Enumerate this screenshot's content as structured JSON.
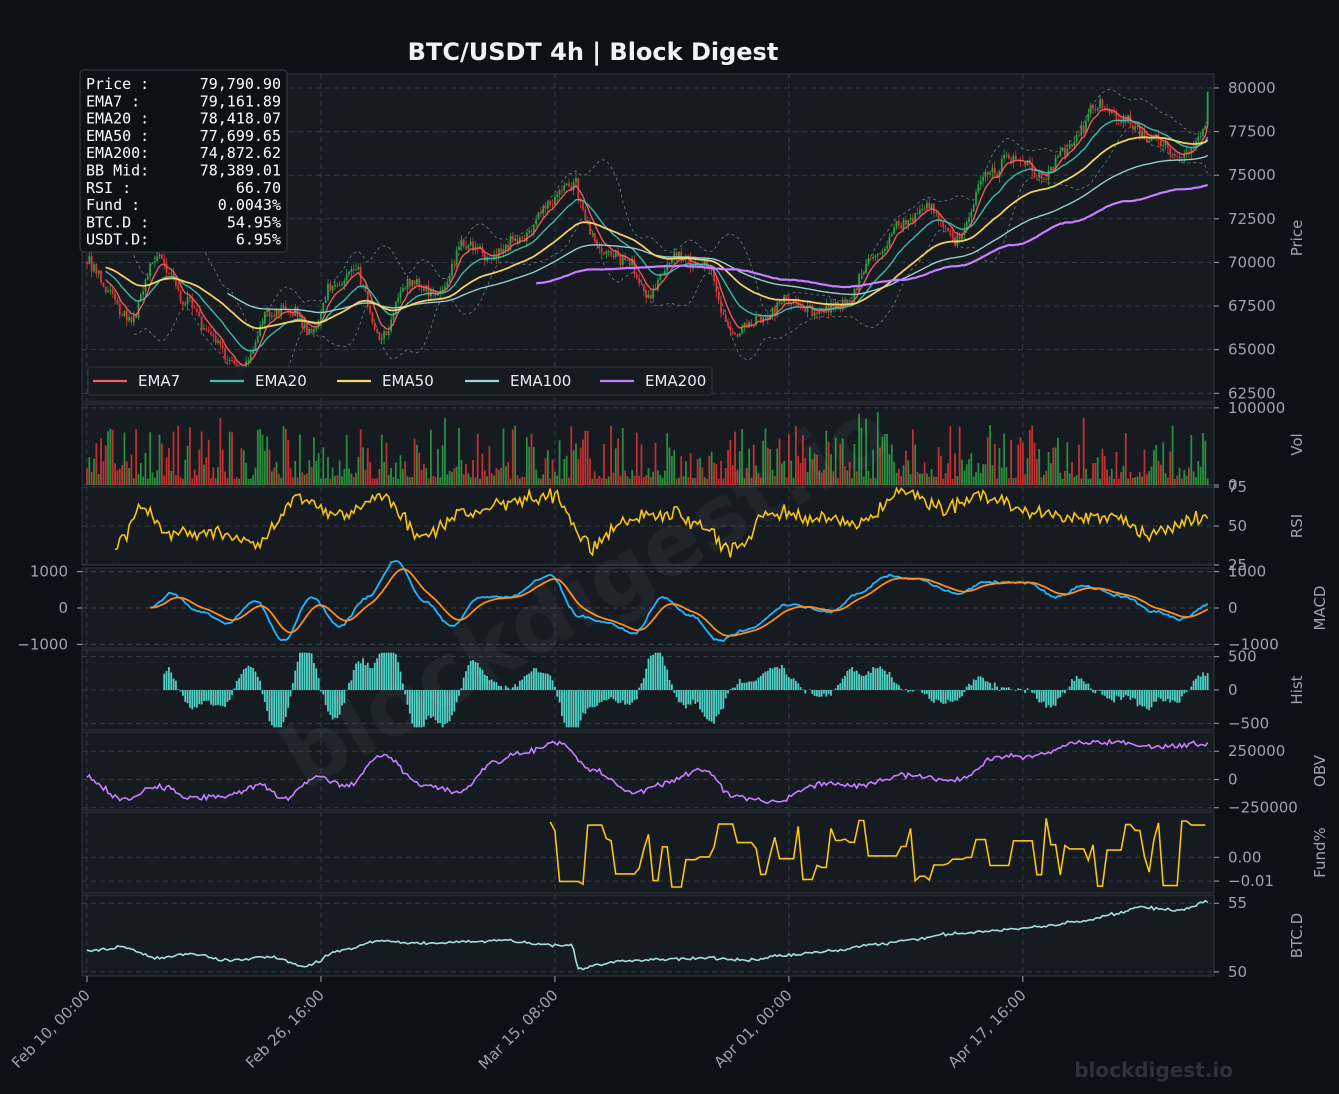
{
  "title": "BTC/USDT  4h  |  Block Digest",
  "watermark": "blockdigest.io",
  "info_box": [
    {
      "label": "Price :",
      "value": "79,790.90"
    },
    {
      "label": "EMA7  :",
      "value": "79,161.89"
    },
    {
      "label": "EMA20 :",
      "value": "78,418.07"
    },
    {
      "label": "EMA50 :",
      "value": "77,699.65"
    },
    {
      "label": "EMA200:",
      "value": "74,872.62"
    },
    {
      "label": "BB Mid:",
      "value": "78,389.01"
    },
    {
      "label": "RSI   :",
      "value": "66.70"
    },
    {
      "label": "Fund  :",
      "value": "0.0043%"
    },
    {
      "label": "BTC.D :",
      "value": "54.95%"
    },
    {
      "label": "USDT.D:",
      "value": "6.95%"
    }
  ],
  "colors": {
    "background": "#0d1117",
    "panel": "#161b22",
    "grid": "#3a424c",
    "up": "#2ea043",
    "down": "#da3633",
    "ema7": "#f85c5c",
    "ema20": "#3fc1b0",
    "ema50": "#ffd866",
    "ema100": "#9bd6d6",
    "ema200": "#c77dff",
    "rsi": "#f9c513",
    "macd": "#1fb6ff",
    "signal": "#ff8c1a",
    "hist": "#4fd1c5",
    "obv": "#c77dff",
    "funding": "#f9c513",
    "btcd": "#a6dce0"
  },
  "chart_data": {
    "type": "line",
    "x_ticks": [
      "Feb 10, 00:00",
      "Feb 26, 16:00",
      "Mar 15, 08:00",
      "Apr 01, 00:00",
      "Apr 17, 16:00"
    ],
    "x_range": [
      "2025-02-10 00:00",
      "2025-05-01 00:00"
    ],
    "panels": [
      {
        "name": "price",
        "type": "candlestick",
        "ylabel": "Price",
        "ylim": [
          62000,
          80800
        ],
        "yticks": [
          "62500",
          "65000",
          "67500",
          "70000",
          "72500",
          "75000",
          "77500",
          "80000"
        ],
        "legend": [
          "EMA7",
          "EMA20",
          "EMA50",
          "EMA100",
          "EMA200"
        ],
        "legend_position": "lower-left",
        "close_anchors": [
          [
            0,
            70000
          ],
          [
            3,
            68500
          ],
          [
            6,
            66500
          ],
          [
            10,
            70300
          ],
          [
            14,
            68000
          ],
          [
            18,
            65500
          ],
          [
            22,
            63800
          ],
          [
            26,
            67000
          ],
          [
            29,
            67500
          ],
          [
            32,
            66000
          ],
          [
            35,
            68700
          ],
          [
            38,
            69500
          ],
          [
            42,
            65700
          ],
          [
            46,
            69000
          ],
          [
            50,
            68200
          ],
          [
            54,
            71000
          ],
          [
            58,
            70200
          ],
          [
            62,
            71500
          ],
          [
            66,
            73500
          ],
          [
            69,
            74500
          ],
          [
            73,
            71000
          ],
          [
            77,
            70000
          ],
          [
            80,
            68200
          ],
          [
            84,
            70500
          ],
          [
            88,
            69800
          ],
          [
            92,
            66000
          ],
          [
            96,
            66700
          ],
          [
            100,
            67800
          ],
          [
            104,
            67100
          ],
          [
            108,
            67500
          ],
          [
            112,
            70300
          ],
          [
            116,
            72300
          ],
          [
            120,
            73200
          ],
          [
            124,
            71200
          ],
          [
            128,
            75000
          ],
          [
            132,
            76000
          ],
          [
            136,
            74800
          ],
          [
            140,
            76800
          ],
          [
            144,
            79000
          ],
          [
            148,
            78000
          ],
          [
            152,
            77000
          ],
          [
            156,
            76000
          ],
          [
            160,
            78000
          ],
          [
            164,
            79000
          ],
          [
            165,
            79790
          ]
        ],
        "ema200_anchors": [
          [
            64,
            68800
          ],
          [
            72,
            69600
          ],
          [
            85,
            69800
          ],
          [
            92,
            69600
          ],
          [
            100,
            69000
          ],
          [
            108,
            68600
          ],
          [
            116,
            69000
          ],
          [
            124,
            69800
          ],
          [
            132,
            71000
          ],
          [
            140,
            72300
          ],
          [
            148,
            73500
          ],
          [
            156,
            74200
          ],
          [
            165,
            74870
          ]
        ],
        "series": [
          "EMA7",
          "EMA20",
          "EMA50",
          "EMA100",
          "EMA200",
          "BB Upper",
          "BB Lower"
        ]
      },
      {
        "name": "volume",
        "type": "bar",
        "ylabel": "Vol",
        "ylim": [
          0,
          105000
        ],
        "yticks": [
          "0",
          "100000"
        ]
      },
      {
        "name": "rsi",
        "type": "line",
        "ylabel": "RSI",
        "ylim": [
          25,
          75
        ],
        "yticks": [
          "25",
          "50",
          "75"
        ],
        "anchors": [
          [
            4,
            35
          ],
          [
            8,
            62
          ],
          [
            12,
            45
          ],
          [
            18,
            45
          ],
          [
            24,
            38
          ],
          [
            30,
            68
          ],
          [
            36,
            55
          ],
          [
            42,
            70
          ],
          [
            48,
            43
          ],
          [
            54,
            58
          ],
          [
            60,
            65
          ],
          [
            66,
            70
          ],
          [
            72,
            37
          ],
          [
            78,
            55
          ],
          [
            84,
            58
          ],
          [
            88,
            48
          ],
          [
            92,
            35
          ],
          [
            98,
            60
          ],
          [
            104,
            55
          ],
          [
            110,
            52
          ],
          [
            116,
            72
          ],
          [
            122,
            62
          ],
          [
            128,
            70
          ],
          [
            134,
            60
          ],
          [
            140,
            55
          ],
          [
            146,
            55
          ],
          [
            152,
            45
          ],
          [
            158,
            55
          ],
          [
            165,
            67
          ]
        ]
      },
      {
        "name": "macd",
        "type": "line",
        "ylabel": "MACD",
        "ylim": [
          -1100,
          1100
        ],
        "yticks": [
          "-1000",
          "0",
          "1000"
        ],
        "macd_anchors": [
          [
            9,
            0
          ],
          [
            12,
            400
          ],
          [
            16,
            -100
          ],
          [
            20,
            -400
          ],
          [
            24,
            200
          ],
          [
            28,
            -900
          ],
          [
            32,
            300
          ],
          [
            36,
            -500
          ],
          [
            40,
            300
          ],
          [
            44,
            1300
          ],
          [
            48,
            200
          ],
          [
            52,
            -500
          ],
          [
            56,
            300
          ],
          [
            60,
            300
          ],
          [
            66,
            900
          ],
          [
            70,
            -200
          ],
          [
            74,
            -400
          ],
          [
            78,
            -700
          ],
          [
            82,
            300
          ],
          [
            86,
            -200
          ],
          [
            90,
            -900
          ],
          [
            94,
            -600
          ],
          [
            100,
            100
          ],
          [
            106,
            -100
          ],
          [
            110,
            400
          ],
          [
            114,
            900
          ],
          [
            118,
            800
          ],
          [
            124,
            400
          ],
          [
            128,
            700
          ],
          [
            134,
            700
          ],
          [
            138,
            300
          ],
          [
            142,
            600
          ],
          [
            148,
            300
          ],
          [
            152,
            -100
          ],
          [
            156,
            -300
          ],
          [
            160,
            100
          ],
          [
            165,
            500
          ]
        ]
      },
      {
        "name": "hist",
        "type": "bar",
        "ylabel": "Hist",
        "ylim": [
          -600,
          600
        ],
        "yticks": [
          "-500",
          "0",
          "500"
        ]
      },
      {
        "name": "obv",
        "type": "line",
        "ylabel": "OBV",
        "ylim": [
          -270000,
          420000
        ],
        "yticks": [
          "-250000",
          "0",
          "250000"
        ],
        "anchors": [
          [
            0,
            20000
          ],
          [
            5,
            -180000
          ],
          [
            10,
            -60000
          ],
          [
            15,
            -160000
          ],
          [
            20,
            -140000
          ],
          [
            25,
            -50000
          ],
          [
            28,
            -170000
          ],
          [
            33,
            30000
          ],
          [
            37,
            -60000
          ],
          [
            42,
            220000
          ],
          [
            48,
            -50000
          ],
          [
            53,
            -120000
          ],
          [
            58,
            150000
          ],
          [
            62,
            240000
          ],
          [
            67,
            330000
          ],
          [
            72,
            80000
          ],
          [
            78,
            -120000
          ],
          [
            82,
            -30000
          ],
          [
            88,
            80000
          ],
          [
            92,
            -150000
          ],
          [
            98,
            -200000
          ],
          [
            104,
            -50000
          ],
          [
            110,
            -50000
          ],
          [
            116,
            40000
          ],
          [
            124,
            0
          ],
          [
            130,
            200000
          ],
          [
            136,
            220000
          ],
          [
            140,
            320000
          ],
          [
            146,
            330000
          ],
          [
            152,
            280000
          ],
          [
            158,
            310000
          ],
          [
            165,
            360000
          ]
        ]
      },
      {
        "name": "funding",
        "type": "line",
        "ylabel": "Fund%",
        "ylim": [
          -0.015,
          0.019
        ],
        "yticks": [
          "-0.01",
          "0.00"
        ],
        "start_index": 33
      },
      {
        "name": "btcd",
        "type": "line",
        "ylabel": "BTC.D",
        "ylim": [
          49.7,
          55.6
        ],
        "yticks": [
          "50",
          "55"
        ],
        "anchors": [
          [
            0,
            51.5
          ],
          [
            5,
            51.8
          ],
          [
            10,
            51
          ],
          [
            15,
            51.3
          ],
          [
            20,
            50.8
          ],
          [
            26,
            51.1
          ],
          [
            31,
            50.4
          ],
          [
            36,
            51.5
          ],
          [
            42,
            52.3
          ],
          [
            48,
            52.1
          ],
          [
            54,
            52.2
          ],
          [
            60,
            52.3
          ],
          [
            66,
            51.9
          ],
          [
            69,
            52
          ],
          [
            70,
            50.3
          ],
          [
            76,
            50.8
          ],
          [
            82,
            50.9
          ],
          [
            88,
            51
          ],
          [
            94,
            50.9
          ],
          [
            100,
            51.2
          ],
          [
            106,
            51.5
          ],
          [
            112,
            52
          ],
          [
            118,
            52.4
          ],
          [
            124,
            52.8
          ],
          [
            130,
            53
          ],
          [
            136,
            53.3
          ],
          [
            142,
            53.7
          ],
          [
            146,
            54.2
          ],
          [
            150,
            54.7
          ],
          [
            156,
            54.5
          ],
          [
            160,
            55.2
          ],
          [
            165,
            55
          ]
        ]
      }
    ]
  }
}
